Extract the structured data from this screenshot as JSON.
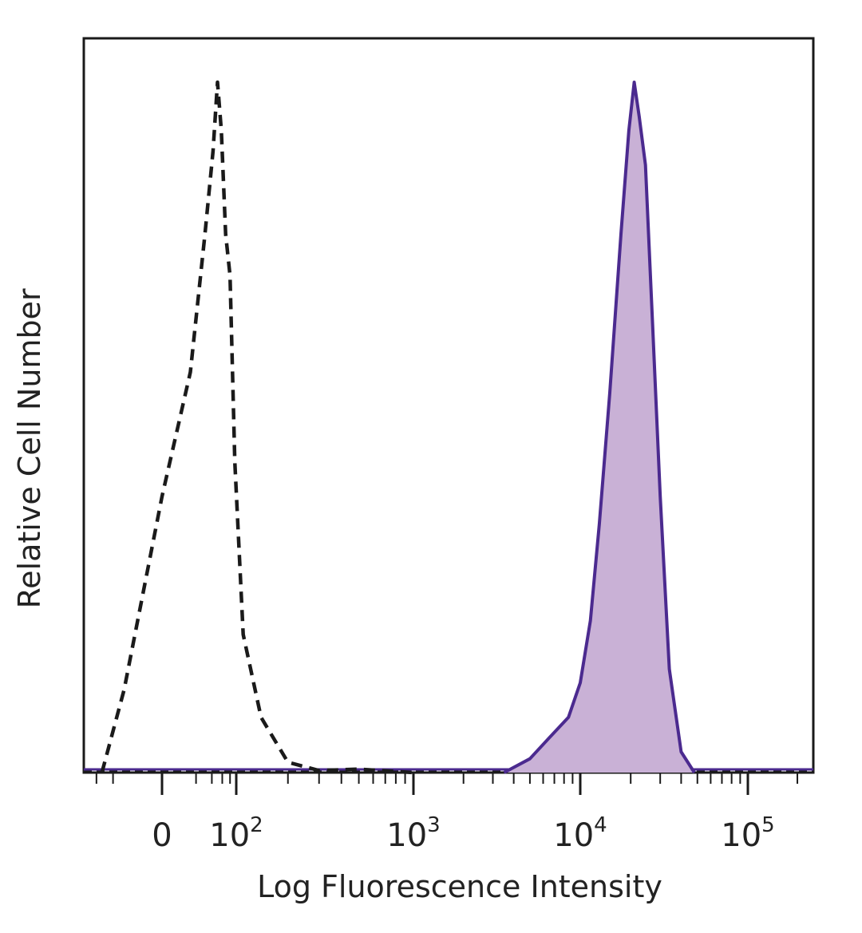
{
  "chart_data": {
    "type": "area",
    "xlabel": "Log Fluorescence Intensity",
    "ylabel": "Relative Cell Number",
    "x_scale": "biexponential",
    "x_ticks": [
      {
        "value": 0,
        "base": "0",
        "exp": ""
      },
      {
        "value": 100,
        "base": "10",
        "exp": "2"
      },
      {
        "value": 1000,
        "base": "10",
        "exp": "3"
      },
      {
        "value": 10000,
        "base": "10",
        "exp": "4"
      },
      {
        "value": 100000,
        "base": "10",
        "exp": "5"
      }
    ],
    "xlim": [
      -150,
      250000
    ],
    "ylim": [
      0,
      100
    ],
    "grid": false,
    "series": [
      {
        "style": "dashed-outline",
        "color": "#1a1a1a",
        "points": [
          [
            -80,
            0
          ],
          [
            -30,
            12
          ],
          [
            0,
            40
          ],
          [
            15,
            58
          ],
          [
            30,
            78
          ],
          [
            42,
            90
          ],
          [
            50,
            100
          ],
          [
            58,
            93
          ],
          [
            68,
            78
          ],
          [
            80,
            72
          ],
          [
            95,
            45
          ],
          [
            110,
            20
          ],
          [
            140,
            8
          ],
          [
            200,
            1.5
          ],
          [
            300,
            0.3
          ],
          [
            500,
            0.5
          ],
          [
            1000,
            0
          ]
        ]
      },
      {
        "style": "filled",
        "color": "#4b2a8f",
        "fill": "#c9b1d6",
        "points": [
          [
            3500,
            0
          ],
          [
            5000,
            2
          ],
          [
            6500,
            5
          ],
          [
            8500,
            8
          ],
          [
            10000,
            13
          ],
          [
            11500,
            22
          ],
          [
            13000,
            36
          ],
          [
            15000,
            55
          ],
          [
            17500,
            78
          ],
          [
            19500,
            93
          ],
          [
            21000,
            100
          ],
          [
            22500,
            95
          ],
          [
            24500,
            88
          ],
          [
            27000,
            65
          ],
          [
            30000,
            40
          ],
          [
            34000,
            15
          ],
          [
            40000,
            3
          ],
          [
            48000,
            0
          ]
        ]
      }
    ]
  }
}
